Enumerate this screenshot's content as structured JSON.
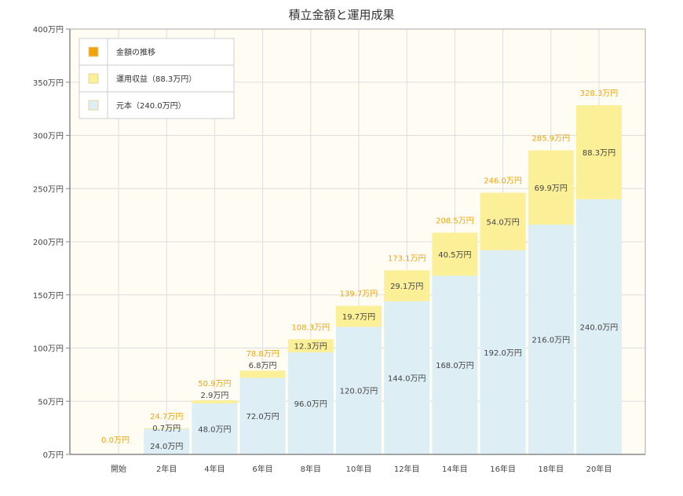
{
  "chart_data": {
    "type": "bar",
    "stacked": true,
    "title": "積立金額と運用成果",
    "categories": [
      "開始",
      "2年目",
      "4年目",
      "6年目",
      "8年目",
      "10年目",
      "12年目",
      "14年目",
      "16年目",
      "18年目",
      "20年目"
    ],
    "series": [
      {
        "name": "元本（240.0万円）",
        "color": "#ddeef5",
        "values": [
          0,
          24.0,
          48.0,
          72.0,
          96.0,
          120.0,
          144.0,
          168.0,
          192.0,
          216.0,
          240.0
        ],
        "labels": [
          "",
          "24.0万円",
          "48.0万円",
          "72.0万円",
          "96.0万円",
          "120.0万円",
          "144.0万円",
          "168.0万円",
          "192.0万円",
          "216.0万円",
          "240.0万円"
        ]
      },
      {
        "name": "運用収益（88.3万円）",
        "color": "#fbef98",
        "values": [
          0,
          0.7,
          2.9,
          6.8,
          12.3,
          19.7,
          29.1,
          40.5,
          54.0,
          69.9,
          88.3
        ],
        "labels": [
          "",
          "0.7万円",
          "2.9万円",
          "6.8万円",
          "12.3万円",
          "19.7万円",
          "29.1万円",
          "40.5万円",
          "54.0万円",
          "69.9万円",
          "88.3万円"
        ]
      }
    ],
    "totals": {
      "name": "金額の推移",
      "color": "#f0a30a",
      "labels": [
        "0.0万円",
        "24.7万円",
        "50.9万円",
        "78.8万円",
        "108.3万円",
        "139.7万円",
        "173.1万円",
        "208.5万円",
        "246.0万円",
        "285.9万円",
        "328.3万円"
      ]
    },
    "ylim": [
      0,
      400
    ],
    "yticks": [
      0,
      50,
      100,
      150,
      200,
      250,
      300,
      350,
      400
    ],
    "ytick_labels": [
      "0万円",
      "50万円",
      "100万円",
      "150万円",
      "200万円",
      "250万円",
      "300万円",
      "350万円",
      "400万円"
    ],
    "grid": true,
    "legend": "top-left",
    "plot_bg": "#fffdf3"
  }
}
